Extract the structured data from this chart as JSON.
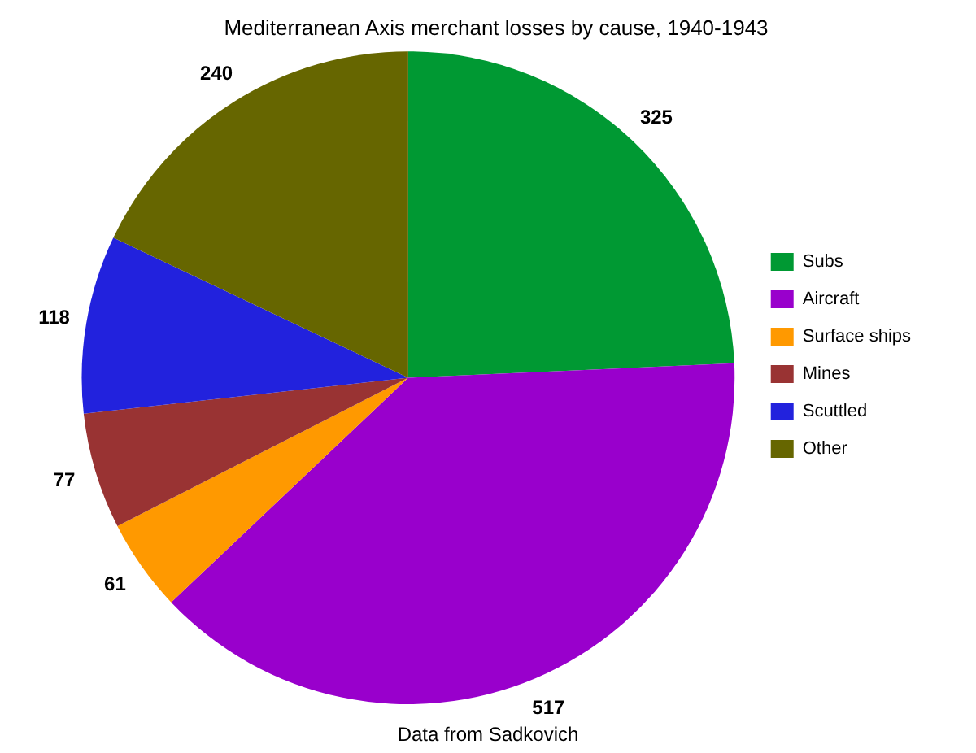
{
  "chart_data": {
    "type": "pie",
    "title": "Mediterranean Axis merchant losses by cause, 1940-1943",
    "categories": [
      "Subs",
      "Aircraft",
      "Surface ships",
      "Mines",
      "Scuttled",
      "Other"
    ],
    "values": [
      325,
      517,
      61,
      77,
      118,
      240
    ],
    "colors": [
      "#009933",
      "#9900cc",
      "#ff9900",
      "#993333",
      "#2222dd",
      "#666600"
    ],
    "data_labels": true,
    "legend": "right",
    "annotations": [
      "Data from Sadkovich"
    ]
  }
}
